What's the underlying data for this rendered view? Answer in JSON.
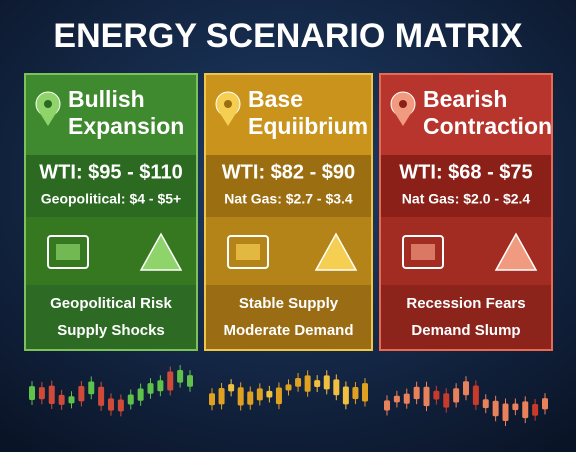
{
  "title": "ENERGY SCENARIO MATRIX",
  "panels": [
    {
      "name_lines": [
        "Bullish",
        "Expansion"
      ],
      "price": "WTI: $95 - $110",
      "gas": "Geopolitical: $4 - $5+",
      "drivers": [
        "Geopolitical Risk",
        "Supply Shocks"
      ]
    },
    {
      "name_lines": [
        "Base",
        "Equiibrium"
      ],
      "price": "WTI: $82 - $90",
      "gas": "Nat Gas: $2.7 - $3.4",
      "drivers": [
        "Stable Supply",
        "Moderate Demand"
      ]
    },
    {
      "name_lines": [
        "Bearish",
        "Contraction"
      ],
      "price": "WTI: $68 - $75",
      "gas": "Nat Gas: $2.0 - $2.4",
      "drivers": [
        "Recession Fears",
        "Demand Slump"
      ]
    }
  ]
}
